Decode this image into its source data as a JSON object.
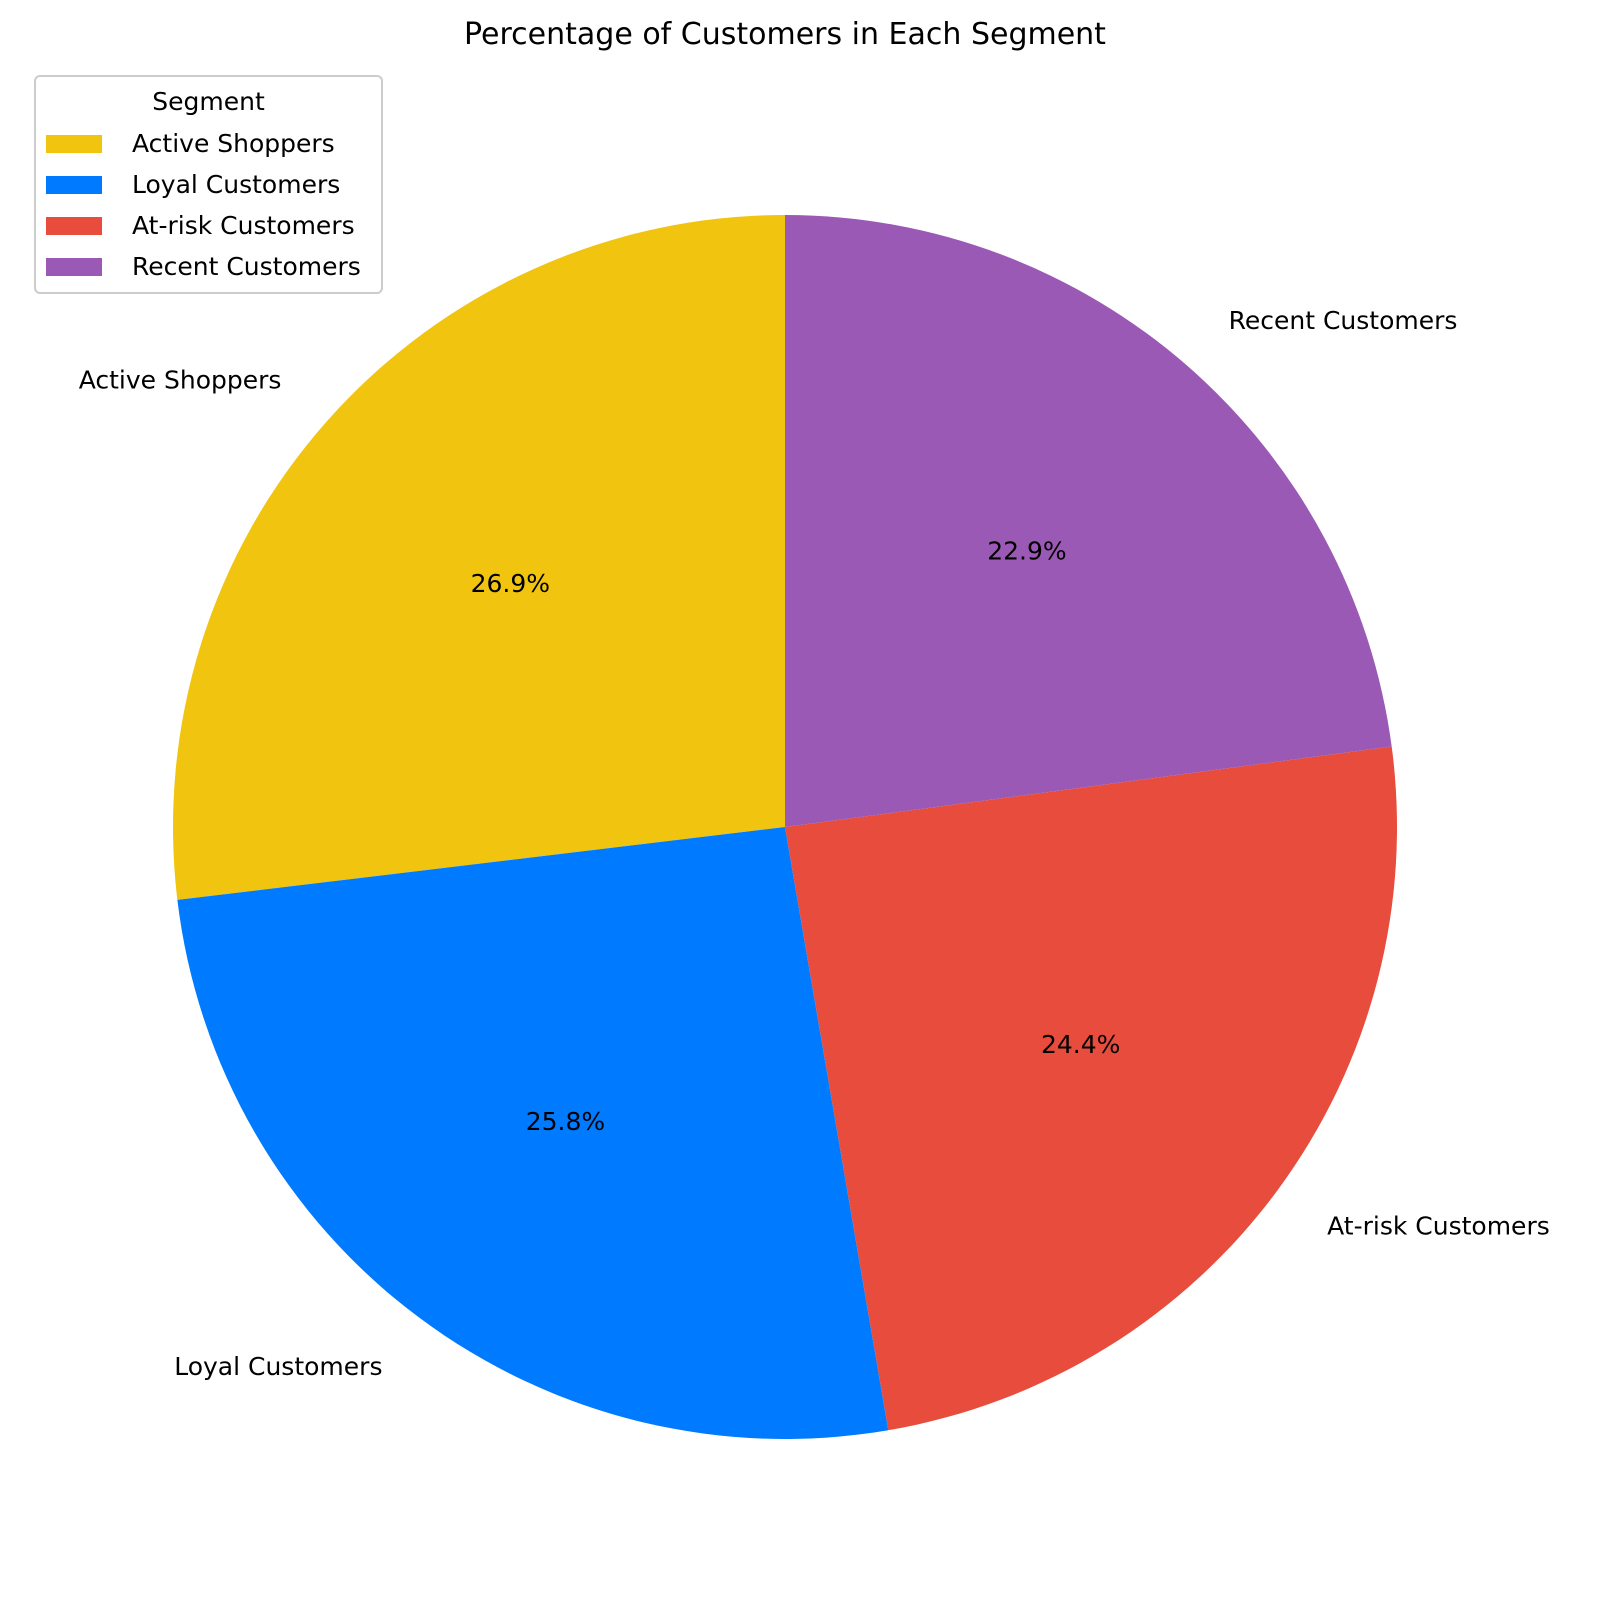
{
  "chart_data": {
    "type": "pie",
    "title": "Percentage of Customers in Each Segment",
    "legend": {
      "title": "Segment",
      "placement": "upper-left"
    },
    "start_angle_deg": 90,
    "direction": "counterclockwise",
    "slices": [
      {
        "label": "Active Shoppers",
        "value": 26.9,
        "pct_label": "26.9%",
        "color": "#f1c40f"
      },
      {
        "label": "Loyal Customers",
        "value": 25.8,
        "pct_label": "25.8%",
        "color": "#007bff"
      },
      {
        "label": "At-risk Customers",
        "value": 24.4,
        "pct_label": "24.4%",
        "color": "#e74c3c"
      },
      {
        "label": "Recent Customers",
        "value": 22.9,
        "pct_label": "22.9%",
        "color": "#9b59b6"
      }
    ]
  }
}
